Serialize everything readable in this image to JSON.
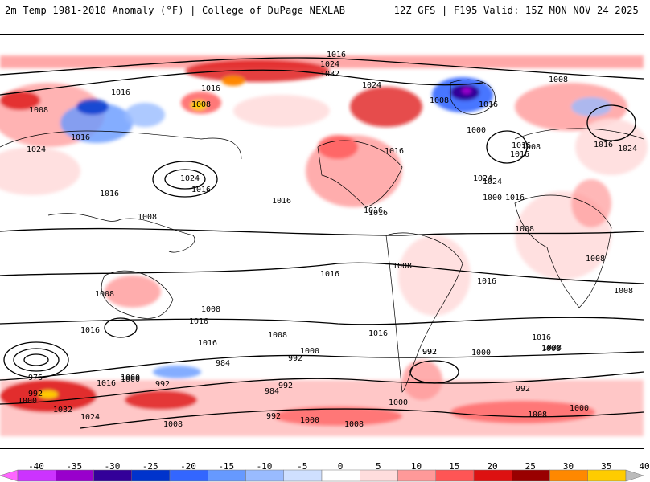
{
  "header": {
    "title_left": "2m Temp 1981-2010 Anomaly (°F) | College of DuPage NEXLAB",
    "title_right": "12Z GFS | F195 Valid: 15Z MON NOV 24 2025"
  },
  "map": {
    "type": "temperature-anomaly-map",
    "contour_labels": [
      {
        "text": "1016"
      },
      {
        "text": "1024"
      },
      {
        "text": "1032"
      },
      {
        "text": "1016"
      },
      {
        "text": "1008"
      },
      {
        "text": "1016"
      },
      {
        "text": "1016"
      },
      {
        "text": "1008"
      },
      {
        "text": "1024"
      },
      {
        "text": "1024"
      },
      {
        "text": "1016"
      },
      {
        "text": "1024"
      },
      {
        "text": "1016"
      },
      {
        "text": "1008"
      },
      {
        "text": "1016"
      },
      {
        "text": "1024"
      },
      {
        "text": "1016"
      },
      {
        "text": "1008"
      },
      {
        "text": "1016"
      },
      {
        "text": "1008"
      },
      {
        "text": "1016"
      },
      {
        "text": "1016"
      },
      {
        "text": "1000"
      },
      {
        "text": "1016"
      },
      {
        "text": "1024"
      },
      {
        "text": "1016"
      },
      {
        "text": "1008"
      },
      {
        "text": "1000"
      },
      {
        "text": "1016"
      },
      {
        "text": "1024"
      },
      {
        "text": "1016"
      },
      {
        "text": "1016"
      },
      {
        "text": "1008"
      },
      {
        "text": "1016"
      },
      {
        "text": "1008"
      },
      {
        "text": "1008"
      },
      {
        "text": "1016"
      },
      {
        "text": "1008"
      },
      {
        "text": "1016"
      },
      {
        "text": "1008"
      },
      {
        "text": "1016"
      },
      {
        "text": "1016"
      },
      {
        "text": "1008"
      },
      {
        "text": "1016"
      },
      {
        "text": "1000"
      },
      {
        "text": "1008"
      },
      {
        "text": "992"
      },
      {
        "text": "984"
      },
      {
        "text": "992"
      },
      {
        "text": "984"
      },
      {
        "text": "1000"
      },
      {
        "text": "992"
      },
      {
        "text": "976"
      },
      {
        "text": "992"
      },
      {
        "text": "1000"
      },
      {
        "text": "1016"
      },
      {
        "text": "1000"
      },
      {
        "text": "992"
      },
      {
        "text": "1032"
      },
      {
        "text": "1024"
      },
      {
        "text": "1008"
      },
      {
        "text": "992"
      },
      {
        "text": "1000"
      },
      {
        "text": "1008"
      },
      {
        "text": "1000"
      },
      {
        "text": "1008"
      },
      {
        "text": "1000"
      },
      {
        "text": "992"
      },
      {
        "text": "1008"
      },
      {
        "text": "1008"
      },
      {
        "text": "992"
      },
      {
        "text": "1000"
      }
    ]
  },
  "colorbar": {
    "ticks": [
      "-40",
      "-35",
      "-30",
      "-25",
      "-20",
      "-15",
      "-10",
      "-5",
      "0",
      "5",
      "10",
      "15",
      "20",
      "25",
      "30",
      "35",
      "40"
    ],
    "colors": [
      "#ff66ff",
      "#cc33ff",
      "#9900cc",
      "#330099",
      "#0033cc",
      "#3366ff",
      "#6699ff",
      "#99bbff",
      "#cfe0ff",
      "#ffffff",
      "#ffdddd",
      "#ff9999",
      "#ff5555",
      "#dd1111",
      "#990000",
      "#ff8800",
      "#ffcc00",
      "#bbbbbb"
    ]
  }
}
